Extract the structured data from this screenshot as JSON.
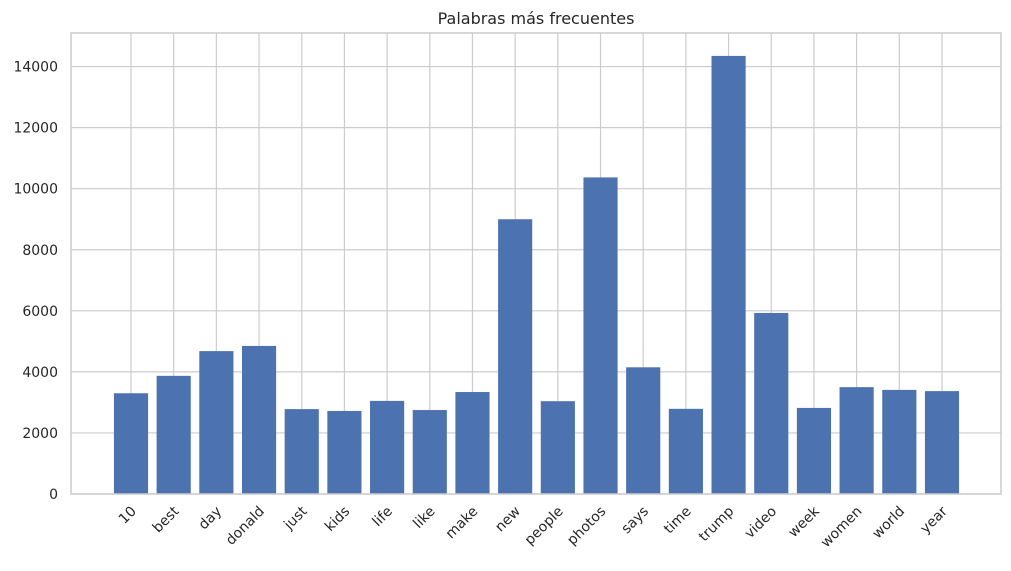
{
  "chart_data": {
    "type": "bar",
    "title": "Palabras más frecuentes",
    "xlabel": "",
    "ylabel": "",
    "categories": [
      "10",
      "best",
      "day",
      "donald",
      "just",
      "kids",
      "life",
      "like",
      "make",
      "new",
      "people",
      "photos",
      "says",
      "time",
      "trump",
      "video",
      "week",
      "women",
      "world",
      "year"
    ],
    "values": [
      3300,
      3870,
      4680,
      4850,
      2780,
      2720,
      3050,
      2750,
      3340,
      9000,
      3040,
      10370,
      4150,
      2790,
      14350,
      5930,
      2820,
      3500,
      3410,
      3370
    ],
    "ylim": [
      0,
      15100
    ],
    "yticks": [
      0,
      2000,
      4000,
      6000,
      8000,
      10000,
      12000,
      14000
    ],
    "ytick_labels": [
      "0",
      "2000",
      "4000",
      "6000",
      "8000",
      "10000",
      "12000",
      "14000"
    ],
    "grid": true,
    "colors": {
      "bar": "#4c72b0",
      "grid": "#cccccc",
      "axis": "#cccccc",
      "text": "#262626"
    }
  }
}
